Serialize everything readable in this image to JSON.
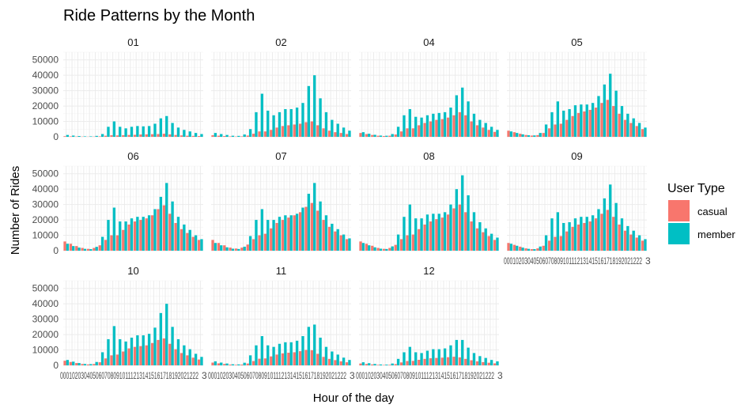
{
  "chart_data": {
    "type": "bar",
    "title": "Ride Patterns by the Month",
    "xlabel": "Hour of the day",
    "ylabel": "Number of Rides",
    "ylim": [
      0,
      55000
    ],
    "yticks": [
      0,
      10000,
      20000,
      30000,
      40000,
      50000
    ],
    "ytick_labels": [
      "0",
      "10000",
      "20000",
      "30000",
      "40000",
      "50000"
    ],
    "categories": [
      "00",
      "01",
      "02",
      "03",
      "04",
      "05",
      "06",
      "07",
      "08",
      "09",
      "10",
      "11",
      "12",
      "13",
      "14",
      "15",
      "16",
      "17",
      "18",
      "19",
      "20",
      "21",
      "22",
      "23"
    ],
    "x_tick_label_run": "00010203040506070809101112131415161718192021222",
    "x_tick_label_tail": "3",
    "legend": {
      "title": "User Type",
      "position": "right",
      "entries": [
        {
          "name": "casual",
          "color": "#F8766D"
        },
        {
          "name": "member",
          "color": "#00BFC4"
        }
      ]
    },
    "grid": true,
    "panels": [
      {
        "month": "01",
        "series": [
          {
            "name": "casual",
            "values": [
              400,
              300,
              200,
              150,
              100,
              150,
              300,
              700,
              1000,
              900,
              1000,
              1200,
              1300,
              1500,
              1600,
              1700,
              1800,
              2000,
              1600,
              1200,
              900,
              700,
              600,
              500
            ]
          },
          {
            "name": "member",
            "values": [
              1200,
              800,
              500,
              300,
              300,
              600,
              1800,
              6500,
              10000,
              6500,
              5500,
              6500,
              7000,
              6800,
              7000,
              8500,
              12000,
              13500,
              9000,
              6000,
              4500,
              3500,
              2500,
              1800
            ]
          }
        ]
      },
      {
        "month": "02",
        "series": [
          {
            "name": "casual",
            "values": [
              1000,
              700,
              500,
              300,
              200,
              300,
              800,
              2000,
              3500,
              3500,
              4500,
              6000,
              7000,
              7500,
              8000,
              8500,
              9500,
              10000,
              7500,
              5500,
              4000,
              3000,
              2500,
              1800
            ]
          },
          {
            "name": "member",
            "values": [
              2500,
              1800,
              1200,
              700,
              600,
              1500,
              5000,
              16000,
              28000,
              17000,
              14000,
              16000,
              18000,
              18000,
              19000,
              22000,
              33000,
              40000,
              25000,
              16000,
              11000,
              8500,
              6000,
              4000
            ]
          }
        ]
      },
      {
        "month": "04",
        "series": [
          {
            "name": "casual",
            "values": [
              2500,
              1800,
              1200,
              700,
              500,
              700,
              1500,
              3500,
              5500,
              5500,
              7500,
              9000,
              10000,
              11000,
              11500,
              12500,
              14000,
              16000,
              14000,
              10000,
              7500,
              6000,
              4500,
              3200
            ]
          },
          {
            "name": "member",
            "values": [
              3000,
              2000,
              1300,
              800,
              700,
              1800,
              6500,
              14000,
              18000,
              13000,
              12500,
              14000,
              15000,
              15500,
              16000,
              19000,
              27000,
              32000,
              23000,
              15000,
              11000,
              9000,
              6500,
              4500
            ]
          }
        ]
      },
      {
        "month": "05",
        "series": [
          {
            "name": "casual",
            "values": [
              4000,
              3000,
              2000,
              1200,
              800,
              1100,
              2500,
              5500,
              8000,
              8500,
              11000,
              13500,
              15500,
              16500,
              17500,
              19000,
              22000,
              24000,
              20000,
              15000,
              11000,
              9000,
              7000,
              5000
            ]
          },
          {
            "name": "member",
            "values": [
              3500,
              2500,
              1600,
              1000,
              900,
              2500,
              8000,
              16000,
              23000,
              17000,
              18000,
              20500,
              21000,
              21000,
              22000,
              26500,
              34000,
              41000,
              30000,
              20000,
              15000,
              12000,
              9000,
              6000
            ]
          }
        ]
      },
      {
        "month": "06",
        "series": [
          {
            "name": "casual",
            "values": [
              6000,
              4500,
              3000,
              1800,
              1200,
              1800,
              3500,
              7000,
              10000,
              10000,
              13500,
              17000,
              19000,
              20000,
              21000,
              23000,
              27000,
              29500,
              24000,
              18000,
              14000,
              11500,
              9000,
              7000
            ]
          },
          {
            "name": "member",
            "values": [
              4500,
              3000,
              2000,
              1200,
              1000,
              2500,
              9000,
              20000,
              28000,
              19000,
              19000,
              21000,
              22000,
              22000,
              23000,
              27000,
              35000,
              44000,
              32000,
              22000,
              17000,
              13500,
              10000,
              7500
            ]
          }
        ]
      },
      {
        "month": "07",
        "series": [
          {
            "name": "casual",
            "values": [
              7000,
              5000,
              3500,
              2000,
              1400,
              2000,
              4000,
              7500,
              10000,
              11000,
              14500,
              18000,
              20000,
              21500,
              23000,
              25000,
              28500,
              31000,
              26000,
              20000,
              15500,
              12500,
              10000,
              7500
            ]
          },
          {
            "name": "member",
            "values": [
              5000,
              3500,
              2200,
              1300,
              1100,
              2600,
              9500,
              20000,
              27000,
              20000,
              20000,
              22000,
              23000,
              23000,
              24000,
              28000,
              37000,
              44000,
              32000,
              23000,
              17500,
              14000,
              10500,
              8000
            ]
          }
        ]
      },
      {
        "month": "08",
        "series": [
          {
            "name": "casual",
            "values": [
              6000,
              4500,
              3200,
              1800,
              1200,
              1800,
              3800,
              7500,
              10000,
              10500,
              14000,
              17000,
              19000,
              20500,
              21500,
              23500,
              27500,
              30000,
              25000,
              19000,
              14500,
              12000,
              9500,
              7000
            ]
          },
          {
            "name": "member",
            "values": [
              5000,
              3500,
              2200,
              1300,
              1100,
              2800,
              10500,
              22000,
              30000,
              21000,
              21000,
              23500,
              24000,
              24000,
              25000,
              30000,
              40000,
              49000,
              36000,
              25000,
              18500,
              14500,
              11000,
              8500
            ]
          }
        ]
      },
      {
        "month": "09",
        "series": [
          {
            "name": "casual",
            "values": [
              5000,
              3800,
              2600,
              1500,
              1000,
              1500,
              3200,
              6500,
              9000,
              9500,
              12500,
              15500,
              17000,
              18000,
              19000,
              21000,
              24000,
              26500,
              22000,
              17000,
              13000,
              10500,
              8500,
              6500
            ]
          },
          {
            "name": "member",
            "values": [
              4500,
              3200,
              2000,
              1200,
              1000,
              2700,
              10000,
              21000,
              25000,
              18000,
              18500,
              21000,
              22000,
              22000,
              23000,
              27000,
              34000,
              43000,
              31000,
              21000,
              16000,
              13000,
              10000,
              7500
            ]
          }
        ]
      },
      {
        "month": "10",
        "series": [
          {
            "name": "casual",
            "values": [
              3000,
              2200,
              1500,
              900,
              600,
              900,
              2000,
              4500,
              6500,
              7000,
              9000,
              11000,
              12000,
              12500,
              13000,
              14500,
              16500,
              17500,
              14000,
              10500,
              8000,
              6500,
              5000,
              3800
            ]
          },
          {
            "name": "member",
            "values": [
              3500,
              2400,
              1500,
              900,
              800,
              2200,
              8500,
              17000,
              25500,
              17000,
              15500,
              18000,
              19500,
              19500,
              20500,
              24500,
              34000,
              40000,
              25000,
              17000,
              13000,
              10500,
              7500,
              5500
            ]
          }
        ]
      },
      {
        "month": "11",
        "series": [
          {
            "name": "casual",
            "values": [
              1800,
              1300,
              900,
              500,
              350,
              500,
              1200,
              2800,
              4300,
              4500,
              5800,
              7000,
              7800,
              8200,
              8500,
              9200,
              10000,
              9800,
              7500,
              5500,
              4200,
              3400,
              2600,
              2000
            ]
          },
          {
            "name": "member",
            "values": [
              2600,
              1800,
              1200,
              700,
              600,
              1700,
              6500,
              13000,
              19000,
              13000,
              12000,
              14000,
              15000,
              15000,
              16000,
              19000,
              25000,
              26500,
              18000,
              12000,
              9000,
              7000,
              5000,
              3500
            ]
          }
        ]
      },
      {
        "month": "12",
        "series": [
          {
            "name": "casual",
            "values": [
              1200,
              900,
              600,
              350,
              250,
              350,
              800,
              1900,
              2800,
              2900,
              3600,
              4200,
              4600,
              4800,
              5000,
              5300,
              5600,
              5200,
              4200,
              3300,
              2600,
              2100,
              1700,
              1300
            ]
          },
          {
            "name": "member",
            "values": [
              2000,
              1400,
              900,
              550,
              450,
              1200,
              4200,
              8500,
              12000,
              8500,
              8000,
              9500,
              10500,
              10500,
              11000,
              13000,
              16500,
              16500,
              11500,
              8000,
              6000,
              4800,
              3500,
              2600
            ]
          }
        ]
      }
    ]
  }
}
